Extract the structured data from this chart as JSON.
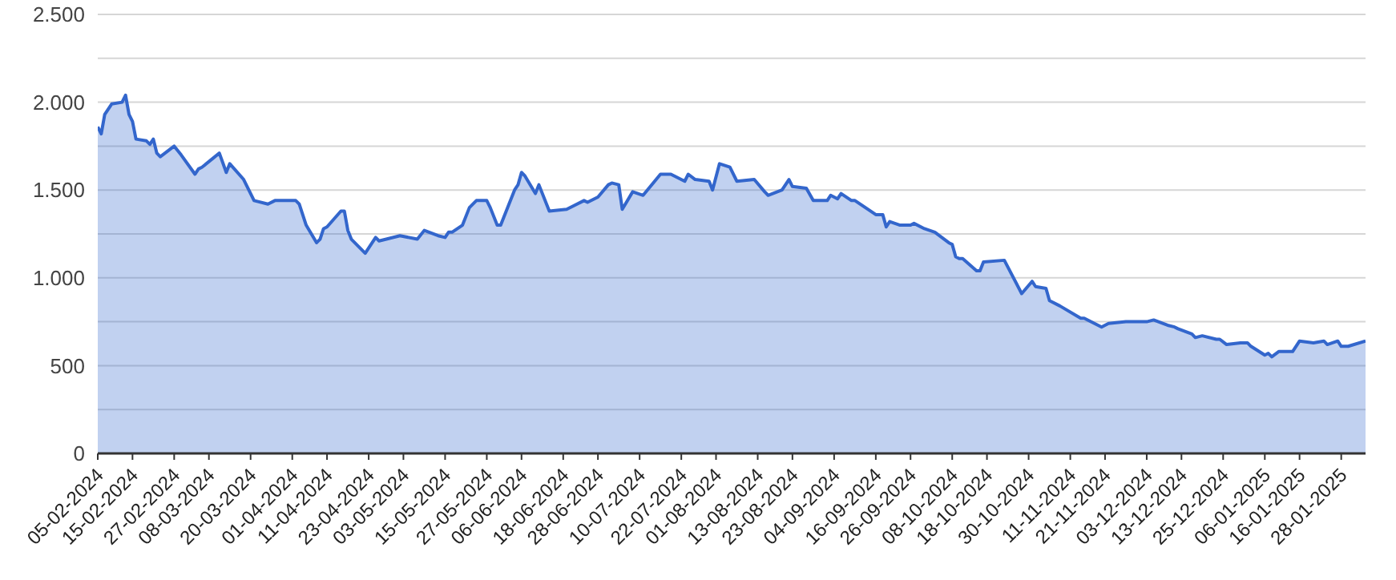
{
  "chart_data": {
    "type": "area",
    "x": [
      "2024-02-05",
      "2024-02-06",
      "2024-02-07",
      "2024-02-09",
      "2024-02-12",
      "2024-02-13",
      "2024-02-14",
      "2024-02-15",
      "2024-02-16",
      "2024-02-19",
      "2024-02-20",
      "2024-02-21",
      "2024-02-22",
      "2024-02-23",
      "2024-02-27",
      "2024-02-29",
      "2024-03-04",
      "2024-03-05",
      "2024-03-06",
      "2024-03-11",
      "2024-03-13",
      "2024-03-14",
      "2024-03-18",
      "2024-03-21",
      "2024-03-25",
      "2024-03-27",
      "2024-04-02",
      "2024-04-03",
      "2024-04-05",
      "2024-04-08",
      "2024-04-09",
      "2024-04-10",
      "2024-04-11",
      "2024-04-15",
      "2024-04-16",
      "2024-04-17",
      "2024-04-18",
      "2024-04-22",
      "2024-04-25",
      "2024-04-26",
      "2024-05-02",
      "2024-05-07",
      "2024-05-09",
      "2024-05-13",
      "2024-05-15",
      "2024-05-16",
      "2024-05-17",
      "2024-05-20",
      "2024-05-22",
      "2024-05-24",
      "2024-05-27",
      "2024-05-28",
      "2024-05-30",
      "2024-05-31",
      "2024-06-04",
      "2024-06-05",
      "2024-06-06",
      "2024-06-07",
      "2024-06-10",
      "2024-06-11",
      "2024-06-14",
      "2024-06-19",
      "2024-06-24",
      "2024-06-25",
      "2024-06-28",
      "2024-07-01",
      "2024-07-02",
      "2024-07-04",
      "2024-07-05",
      "2024-07-08",
      "2024-07-11",
      "2024-07-16",
      "2024-07-19",
      "2024-07-23",
      "2024-07-24",
      "2024-07-26",
      "2024-07-30",
      "2024-07-31",
      "2024-08-02",
      "2024-08-05",
      "2024-08-07",
      "2024-08-12",
      "2024-08-15",
      "2024-08-16",
      "2024-08-20",
      "2024-08-22",
      "2024-08-23",
      "2024-08-27",
      "2024-08-29",
      "2024-09-02",
      "2024-09-03",
      "2024-09-05",
      "2024-09-06",
      "2024-09-09",
      "2024-09-10",
      "2024-09-16",
      "2024-09-18",
      "2024-09-19",
      "2024-09-20",
      "2024-09-23",
      "2024-09-26",
      "2024-09-27",
      "2024-09-30",
      "2024-10-03",
      "2024-10-07",
      "2024-10-08",
      "2024-10-09",
      "2024-10-10",
      "2024-10-11",
      "2024-10-15",
      "2024-10-16",
      "2024-10-17",
      "2024-10-23",
      "2024-10-28",
      "2024-10-31",
      "2024-11-01",
      "2024-11-04",
      "2024-11-05",
      "2024-11-08",
      "2024-11-14",
      "2024-11-15",
      "2024-11-20",
      "2024-11-22",
      "2024-11-27",
      "2024-11-29",
      "2024-12-03",
      "2024-12-05",
      "2024-12-09",
      "2024-12-11",
      "2024-12-12",
      "2024-12-16",
      "2024-12-17",
      "2024-12-19",
      "2024-12-23",
      "2024-12-24",
      "2024-12-26",
      "2024-12-30",
      "2025-01-01",
      "2025-01-02",
      "2025-01-06",
      "2025-01-07",
      "2025-01-08",
      "2025-01-10",
      "2025-01-14",
      "2025-01-16",
      "2025-01-20",
      "2025-01-23",
      "2025-01-24",
      "2025-01-27",
      "2025-01-28",
      "2025-01-30",
      "2025-02-04"
    ],
    "series": [
      {
        "color": "#3366cc",
        "values": [
          1860,
          1820,
          1930,
          1990,
          2000,
          2040,
          1930,
          1890,
          1790,
          1780,
          1760,
          1790,
          1710,
          1690,
          1750,
          1700,
          1590,
          1620,
          1630,
          1710,
          1600,
          1650,
          1560,
          1440,
          1420,
          1440,
          1440,
          1420,
          1300,
          1200,
          1220,
          1280,
          1290,
          1380,
          1380,
          1270,
          1220,
          1140,
          1230,
          1210,
          1240,
          1220,
          1270,
          1240,
          1230,
          1260,
          1260,
          1300,
          1400,
          1440,
          1440,
          1400,
          1300,
          1300,
          1500,
          1530,
          1600,
          1580,
          1480,
          1530,
          1380,
          1390,
          1440,
          1430,
          1460,
          1530,
          1540,
          1530,
          1390,
          1490,
          1470,
          1590,
          1590,
          1550,
          1590,
          1560,
          1550,
          1500,
          1650,
          1630,
          1550,
          1560,
          1490,
          1470,
          1500,
          1560,
          1520,
          1510,
          1440,
          1440,
          1470,
          1450,
          1480,
          1440,
          1440,
          1360,
          1360,
          1290,
          1320,
          1300,
          1300,
          1310,
          1280,
          1260,
          1200,
          1190,
          1120,
          1110,
          1110,
          1040,
          1040,
          1090,
          1100,
          910,
          980,
          950,
          940,
          870,
          840,
          770,
          770,
          720,
          740,
          750,
          750,
          750,
          760,
          730,
          720,
          710,
          680,
          660,
          670,
          650,
          650,
          620,
          630,
          630,
          610,
          560,
          570,
          550,
          580,
          580,
          640,
          630,
          640,
          620,
          640,
          610,
          610,
          640
        ]
      }
    ],
    "xlim": [
      "2024-02-05",
      "2025-02-04"
    ],
    "xticks": [
      {
        "value": "2024-02-05",
        "label": "05-02-2024"
      },
      {
        "value": "2024-02-15",
        "label": "15-02-2024"
      },
      {
        "value": "2024-02-27",
        "label": "27-02-2024"
      },
      {
        "value": "2024-03-08",
        "label": "08-03-2024"
      },
      {
        "value": "2024-03-20",
        "label": "20-03-2024"
      },
      {
        "value": "2024-04-01",
        "label": "01-04-2024"
      },
      {
        "value": "2024-04-11",
        "label": "11-04-2024"
      },
      {
        "value": "2024-04-23",
        "label": "23-04-2024"
      },
      {
        "value": "2024-05-03",
        "label": "03-05-2024"
      },
      {
        "value": "2024-05-15",
        "label": "15-05-2024"
      },
      {
        "value": "2024-05-27",
        "label": "27-05-2024"
      },
      {
        "value": "2024-06-06",
        "label": "06-06-2024"
      },
      {
        "value": "2024-06-18",
        "label": "18-06-2024"
      },
      {
        "value": "2024-06-28",
        "label": "28-06-2024"
      },
      {
        "value": "2024-07-10",
        "label": "10-07-2024"
      },
      {
        "value": "2024-07-22",
        "label": "22-07-2024"
      },
      {
        "value": "2024-08-01",
        "label": "01-08-2024"
      },
      {
        "value": "2024-08-13",
        "label": "13-08-2024"
      },
      {
        "value": "2024-08-23",
        "label": "23-08-2024"
      },
      {
        "value": "2024-09-04",
        "label": "04-09-2024"
      },
      {
        "value": "2024-09-16",
        "label": "16-09-2024"
      },
      {
        "value": "2024-09-26",
        "label": "26-09-2024"
      },
      {
        "value": "2024-10-08",
        "label": "08-10-2024"
      },
      {
        "value": "2024-10-18",
        "label": "18-10-2024"
      },
      {
        "value": "2024-10-30",
        "label": "30-10-2024"
      },
      {
        "value": "2024-11-11",
        "label": "11-11-2024"
      },
      {
        "value": "2024-11-21",
        "label": "21-11-2024"
      },
      {
        "value": "2024-12-03",
        "label": "03-12-2024"
      },
      {
        "value": "2024-12-13",
        "label": "13-12-2024"
      },
      {
        "value": "2024-12-25",
        "label": "25-12-2024"
      },
      {
        "value": "2025-01-06",
        "label": "06-01-2025"
      },
      {
        "value": "2025-01-16",
        "label": "16-01-2025"
      },
      {
        "value": "2025-01-28",
        "label": "28-01-2025"
      }
    ],
    "ylim": [
      0,
      2500
    ],
    "yticks": [
      {
        "value": 0,
        "label": "0"
      },
      {
        "value": 250,
        "label": null
      },
      {
        "value": 500,
        "label": "500"
      },
      {
        "value": 750,
        "label": null
      },
      {
        "value": 1000,
        "label": "1.000"
      },
      {
        "value": 1250,
        "label": null
      },
      {
        "value": 1500,
        "label": "1.500"
      },
      {
        "value": 1750,
        "label": null
      },
      {
        "value": 2000,
        "label": "2.000"
      },
      {
        "value": 2250,
        "label": null
      },
      {
        "value": 2500,
        "label": "2.500"
      }
    ],
    "grid": "y",
    "marker": "none",
    "line_style": "solid"
  }
}
